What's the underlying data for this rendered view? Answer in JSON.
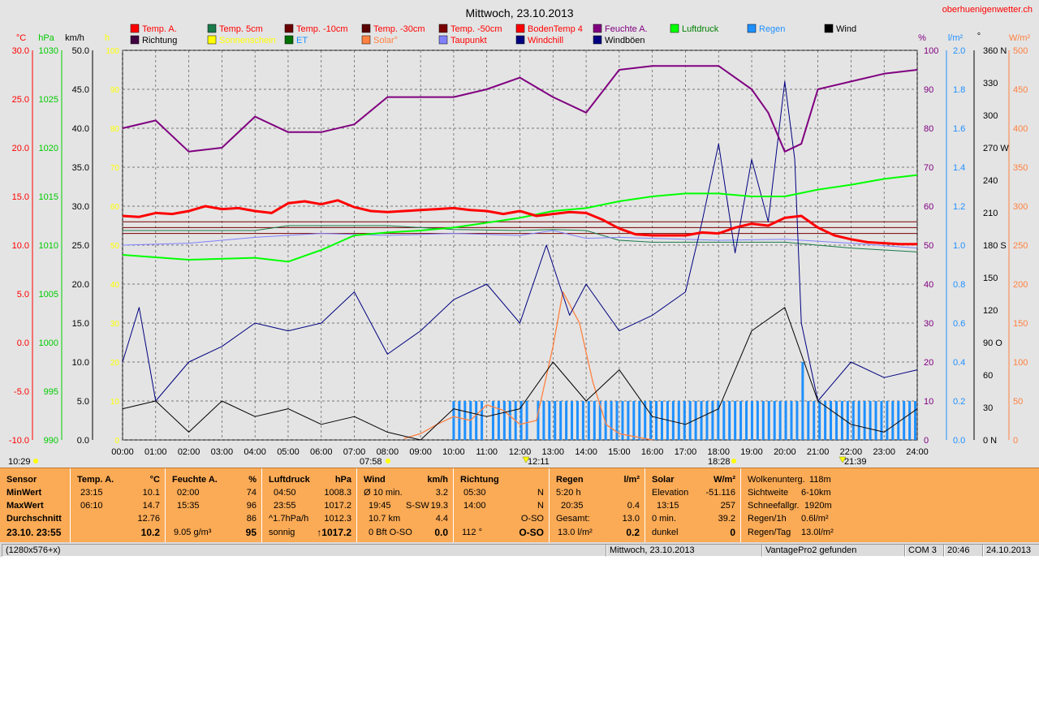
{
  "title": "Mittwoch, 23.10.2013",
  "site": "oberhuenigenwetter.ch",
  "legend": [
    {
      "label": "Temp. A.",
      "color": "#ff0000"
    },
    {
      "label": "Temp. 5cm",
      "color": "#1a7a4a"
    },
    {
      "label": "Temp. -10cm",
      "color": "#6b0000"
    },
    {
      "label": "Temp. -30cm",
      "color": "#5a0000"
    },
    {
      "label": "Temp. -50cm",
      "color": "#7a0000"
    },
    {
      "label": "BodenTemp 4",
      "color": "#ff0000"
    },
    {
      "label": "Feuchte A.",
      "color": "#800080"
    },
    {
      "label": "Luftdruck",
      "color": "#00ff00"
    },
    {
      "label": "Regen",
      "color": "#1e90ff"
    },
    {
      "label": "Wind",
      "color": "#000000"
    },
    {
      "label": "Richtung",
      "color": "#400040"
    },
    {
      "label": "Sonnenschein",
      "color": "#ffff00"
    },
    {
      "label": "ET",
      "color": "#007000"
    },
    {
      "label": "Solar°",
      "color": "#ff8040"
    },
    {
      "label": "Taupunkt",
      "color": "#8080ff"
    },
    {
      "label": "Windchill",
      "color": "#000080"
    },
    {
      "label": "Windböen",
      "color": "#000080"
    }
  ],
  "axes": {
    "temp": {
      "unit": "°C",
      "color": "#ff0000",
      "ticks": [
        "30.0",
        "25.0",
        "20.0",
        "15.0",
        "10.0",
        "5.0",
        "0.0",
        "-5.0",
        "-10.0"
      ]
    },
    "pressure": {
      "unit": "hPa",
      "color": "#00cc00",
      "ticks": [
        "1030",
        "1025",
        "1020",
        "1015",
        "1010",
        "1005",
        "1000",
        "995",
        "990"
      ]
    },
    "wind": {
      "unit": "km/h",
      "color": "#000000",
      "ticks": [
        "50.0",
        "45.0",
        "40.0",
        "35.0",
        "30.0",
        "25.0",
        "20.0",
        "15.0",
        "10.0",
        "5.0",
        "0.0"
      ]
    },
    "sun": {
      "unit": "h",
      "color": "#ffff00",
      "ticks": [
        "100",
        "90",
        "80",
        "70",
        "60",
        "50",
        "40",
        "30",
        "20",
        "10",
        "0"
      ]
    },
    "humidity": {
      "unit": "%",
      "color": "#800080",
      "ticks": [
        "100",
        "90",
        "80",
        "70",
        "60",
        "50",
        "40",
        "30",
        "20",
        "10",
        "0"
      ]
    },
    "rain": {
      "unit": "l/m²",
      "color": "#1e90ff",
      "ticks": [
        "2.0",
        "1.8",
        "1.6",
        "1.4",
        "1.2",
        "1.0",
        "0.8",
        "0.6",
        "0.4",
        "0.2",
        "0.0"
      ]
    },
    "direction": {
      "unit": "°",
      "color": "#000000",
      "ticks": [
        "360 N",
        "330",
        "300",
        "270 W",
        "240",
        "210",
        "180 S",
        "150",
        "120",
        "90  O",
        "60",
        "30",
        "0   N"
      ]
    },
    "solar": {
      "unit": "W/m²",
      "color": "#ff8040",
      "ticks": [
        "500",
        "450",
        "400",
        "350",
        "300",
        "250",
        "200",
        "150",
        "100",
        "50",
        "0"
      ]
    },
    "x_ticks": [
      "00:00",
      "01:00",
      "02:00",
      "03:00",
      "04:00",
      "05:00",
      "06:00",
      "07:00",
      "08:00",
      "09:00",
      "10:00",
      "11:00",
      "12:00",
      "13:00",
      "14:00",
      "15:00",
      "16:00",
      "17:00",
      "18:00",
      "19:00",
      "20:00",
      "21:00",
      "22:00",
      "23:00",
      "24:00"
    ]
  },
  "markers": {
    "left": "10:29",
    "sunrise": "07:58",
    "noon": "12:11",
    "sunset": "18:28",
    "moon": "21:39"
  },
  "chart_data": {
    "type": "line",
    "title": "Mittwoch, 23.10.2013",
    "x_range": [
      0,
      24
    ],
    "grid": true,
    "series": [
      {
        "name": "Temp. A.",
        "axis": "temp",
        "x": [
          0,
          0.5,
          1,
          1.5,
          2,
          2.5,
          3,
          3.5,
          4,
          4.5,
          5,
          5.5,
          6,
          6.5,
          7,
          7.5,
          8,
          8.5,
          9,
          9.5,
          10,
          10.5,
          11,
          11.5,
          12,
          12.5,
          13,
          13.5,
          14,
          14.5,
          15,
          15.5,
          16,
          16.5,
          17,
          17.5,
          18,
          18.5,
          19,
          19.5,
          20,
          20.5,
          21,
          21.5,
          22,
          22.5,
          23,
          23.5,
          24
        ],
        "y": [
          13.0,
          12.9,
          13.3,
          13.2,
          13.5,
          14.0,
          13.7,
          13.8,
          13.5,
          13.3,
          14.3,
          14.5,
          14.2,
          14.6,
          13.9,
          13.5,
          13.4,
          13.5,
          13.6,
          13.7,
          13.8,
          13.6,
          13.5,
          13.2,
          13.5,
          13.0,
          13.2,
          13.4,
          13.3,
          12.6,
          11.7,
          11.1,
          11.0,
          11.0,
          11.0,
          11.3,
          11.2,
          11.8,
          12.2,
          12.0,
          12.8,
          13.0,
          11.8,
          11.0,
          10.6,
          10.3,
          10.2,
          10.1,
          10.1
        ]
      },
      {
        "name": "Feuchte A.",
        "axis": "humidity",
        "x": [
          0,
          1,
          2,
          3,
          4,
          5,
          6,
          7,
          8,
          9,
          10,
          11,
          12,
          13,
          14,
          15,
          16,
          17,
          18,
          19,
          19.5,
          20,
          20.5,
          21,
          22,
          23,
          24
        ],
        "y": [
          80,
          82,
          74,
          75,
          83,
          79,
          79,
          81,
          88,
          88,
          88,
          90,
          93,
          88,
          84,
          95,
          96,
          96,
          96,
          90,
          84,
          74,
          76,
          90,
          92,
          94,
          95
        ]
      },
      {
        "name": "Luftdruck",
        "axis": "pressure",
        "x": [
          0,
          2,
          4,
          5,
          6,
          7,
          8,
          9,
          10,
          11,
          12,
          13,
          14,
          15,
          16,
          17,
          18,
          19,
          20,
          21,
          22,
          23,
          24
        ],
        "y": [
          1009.0,
          1008.5,
          1008.7,
          1008.3,
          1009.5,
          1011.0,
          1011.3,
          1011.5,
          1011.8,
          1012.3,
          1012.8,
          1013.5,
          1013.8,
          1014.5,
          1015.0,
          1015.3,
          1015.3,
          1015.0,
          1015.0,
          1015.7,
          1016.2,
          1016.8,
          1017.2
        ]
      },
      {
        "name": "Taupunkt",
        "axis": "temp",
        "x": [
          0,
          2,
          4,
          6,
          8,
          10,
          12,
          13,
          14,
          15,
          16,
          18,
          20,
          22,
          24
        ],
        "y": [
          10.0,
          10.2,
          10.8,
          11.2,
          11.0,
          11.2,
          11.0,
          11.5,
          10.7,
          10.8,
          10.7,
          10.5,
          10.6,
          10.2,
          9.7
        ]
      },
      {
        "name": "Temp. 5cm",
        "axis": "temp",
        "x": [
          0,
          4,
          5,
          8,
          10,
          12,
          13,
          14,
          15,
          16,
          18,
          20,
          22,
          24
        ],
        "y": [
          11.5,
          11.5,
          12.0,
          12.0,
          11.6,
          11.5,
          11.6,
          11.5,
          10.5,
          10.3,
          10.3,
          10.3,
          9.7,
          9.3
        ]
      },
      {
        "name": "Temp. -10cm",
        "axis": "temp",
        "x": [
          0,
          24
        ],
        "y": [
          11.2,
          11.2
        ]
      },
      {
        "name": "Temp. -30cm",
        "axis": "temp",
        "x": [
          0,
          24
        ],
        "y": [
          11.8,
          11.8
        ]
      },
      {
        "name": "Temp. -50cm",
        "axis": "temp",
        "x": [
          0,
          24
        ],
        "y": [
          12.4,
          12.4
        ]
      },
      {
        "name": "Solar°",
        "axis": "solar",
        "x": [
          8.5,
          9,
          9.5,
          10,
          10.5,
          11,
          11.5,
          12,
          12.5,
          13,
          13.3,
          13.8,
          14.2,
          14.6,
          15,
          16
        ],
        "y": [
          2,
          8,
          20,
          30,
          25,
          45,
          38,
          20,
          25,
          120,
          190,
          150,
          75,
          20,
          8,
          0
        ]
      },
      {
        "name": "Wind",
        "axis": "wind",
        "x": [
          0,
          1,
          2,
          3,
          4,
          5,
          6,
          7,
          8,
          9,
          10,
          11,
          12,
          13,
          14,
          15,
          16,
          17,
          18,
          19,
          20,
          21,
          22,
          23,
          24
        ],
        "y": [
          4,
          5,
          1,
          5,
          3,
          4,
          2,
          3,
          1,
          0,
          4,
          3,
          4,
          10,
          5,
          9,
          3,
          2,
          4,
          14,
          17,
          5,
          2,
          1,
          4
        ]
      },
      {
        "name": "Windböen",
        "axis": "wind",
        "x": [
          0,
          0.5,
          1,
          2,
          3,
          4,
          5,
          6,
          7,
          8,
          9,
          10,
          11,
          12,
          12.8,
          13.5,
          14,
          15,
          16,
          17,
          17.5,
          18,
          18.5,
          19,
          19.5,
          20,
          20.3,
          20.5,
          21,
          22,
          23,
          24
        ],
        "y": [
          10,
          17,
          5,
          10,
          12,
          15,
          14,
          15,
          19,
          11,
          14,
          18,
          20,
          15,
          25,
          16,
          20,
          14,
          16,
          19,
          28,
          38,
          24,
          36,
          28,
          46,
          36,
          15,
          5,
          10,
          8,
          9
        ]
      },
      {
        "name": "Regen",
        "axis": "rain",
        "x": [
          10,
          11,
          12,
          13,
          14,
          15,
          16,
          17,
          18,
          19,
          20,
          20.55,
          21,
          22,
          23,
          24
        ],
        "y": [
          0.2,
          0.2,
          0.2,
          0.2,
          0.2,
          0.2,
          0.2,
          0.2,
          0.2,
          0.2,
          0.2,
          0.4,
          0.2,
          0.2,
          0.2,
          0.2
        ]
      }
    ]
  },
  "summary": {
    "sensor": {
      "head": "Sensor",
      "min": "MinWert",
      "max": "MaxWert",
      "avg": "Durchschnitt",
      "now": "23.10. 23:55"
    },
    "temp": {
      "head": "Temp. A.",
      "unit": "°C",
      "min_time": "23:15",
      "min_val": "10.1",
      "max_time": "06:10",
      "max_val": "14.7",
      "avg": "12.76",
      "now": "10.2"
    },
    "hum": {
      "head": "Feuchte A.",
      "unit": "%",
      "min_time": "02:00",
      "min_val": "74",
      "max_time": "15:35",
      "max_val": "96",
      "avg": "86",
      "now_l": "9.05 g/m³",
      "now": "95"
    },
    "press": {
      "head": "Luftdruck",
      "unit": "hPa",
      "min_time": "04:50",
      "min_val": "1008.3",
      "max_time": "23:55",
      "max_val": "1017.2",
      "avg_l": "^1.7hPa/h",
      "avg": "1012.3",
      "now_l": "sonnig",
      "now_arrow": "↑",
      "now": "1017.2"
    },
    "wind": {
      "head": "Wind",
      "unit": "km/h",
      "r1_l": "Ø 10 min.",
      "r1": "3.2",
      "r2_l": "19:45",
      "r2_m": "S-SW",
      "r2": "19.3",
      "r3_l": "10.7 km",
      "r3": "4.4",
      "r4_l": "0 Bft O-SO",
      "r4": "0.0"
    },
    "dir": {
      "head": "Richtung",
      "r1_l": "05:30",
      "r1": "N",
      "r2_l": "14:00",
      "r2": "N",
      "r3": "O-SO",
      "r4_l": "112 °",
      "r4": "O-SO"
    },
    "rain": {
      "head": "Regen",
      "unit": "l/m²",
      "r1_l": "5:20 h",
      "r2_l": "20:35",
      "r2": "0.4",
      "r3_l": "Gesamt:",
      "r3": "13.0",
      "r4_l": "13.0 l/m²",
      "r4": "0.2"
    },
    "solar": {
      "head": "Solar",
      "unit": "W/m²",
      "r1_l": "Elevation",
      "r1": "-51.116",
      "r2_l": "13:15",
      "r2": "257",
      "r3_l": "0 min.",
      "r3": "39.2",
      "r4_l": "dunkel",
      "r4": "0"
    },
    "misc": {
      "r0_l": "Wolkenunterg.",
      "r0": "118m",
      "r1_l": "Sichtweite",
      "r1": "6-10km",
      "r2_l": "Schneefallgr.",
      "r2": "1920m",
      "r3_l": "Regen/1h",
      "r3": "0.6l/m²",
      "r4_l": "Regen/Tag",
      "r4": "13.0l/m²"
    }
  },
  "status": {
    "res": "(1280x576+x)",
    "date": "Mittwoch, 23.10.2013",
    "station": "VantagePro2 gefunden",
    "port": "COM 3",
    "time": "20:46",
    "today": "24.10.2013"
  }
}
